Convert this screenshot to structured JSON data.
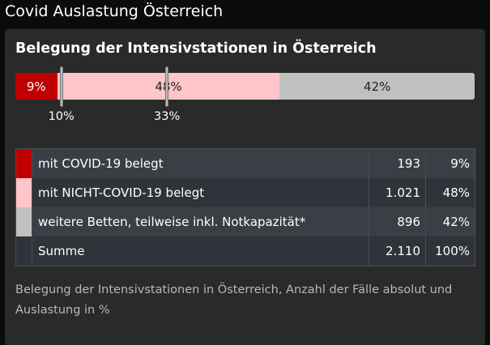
{
  "app_title": "Covid Auslastung Österreich",
  "card": {
    "title": "Belegung der Intensivstationen in Österreich",
    "caption": "Belegung der Intensivstationen in Österreich, Anzahl der Fälle absolut und Auslastung in %"
  },
  "chart_data": {
    "type": "bar",
    "orientation": "horizontal-stacked",
    "title": "Belegung der Intensivstationen in Österreich",
    "categories": [
      "mit COVID-19 belegt",
      "mit NICHT-COVID-19 belegt",
      "weitere Betten, teilweise inkl. Notkapazität*"
    ],
    "values": [
      9,
      48,
      42
    ],
    "labels": [
      "9%",
      "48%",
      "42%"
    ],
    "colors": [
      "#c00000",
      "#ffc5c8",
      "#c0c0c0"
    ],
    "text_colors": [
      "#ffffff",
      "#222222",
      "#222222"
    ],
    "markers": [
      {
        "value": 10,
        "label": "10%"
      },
      {
        "value": 33,
        "label": "33%"
      }
    ]
  },
  "table": {
    "rows": [
      {
        "label": "mit COVID-19 belegt",
        "count": "193",
        "percent": "9%",
        "color": "#c00000"
      },
      {
        "label": "mit NICHT-COVID-19 belegt",
        "count": "1.021",
        "percent": "48%",
        "color": "#ffc5c8"
      },
      {
        "label": "weitere Betten, teilweise inkl. Notkapazität*",
        "count": "896",
        "percent": "42%",
        "color": "#c0c0c0"
      },
      {
        "label": "Summe",
        "count": "2.110",
        "percent": "100%",
        "color": ""
      }
    ]
  }
}
